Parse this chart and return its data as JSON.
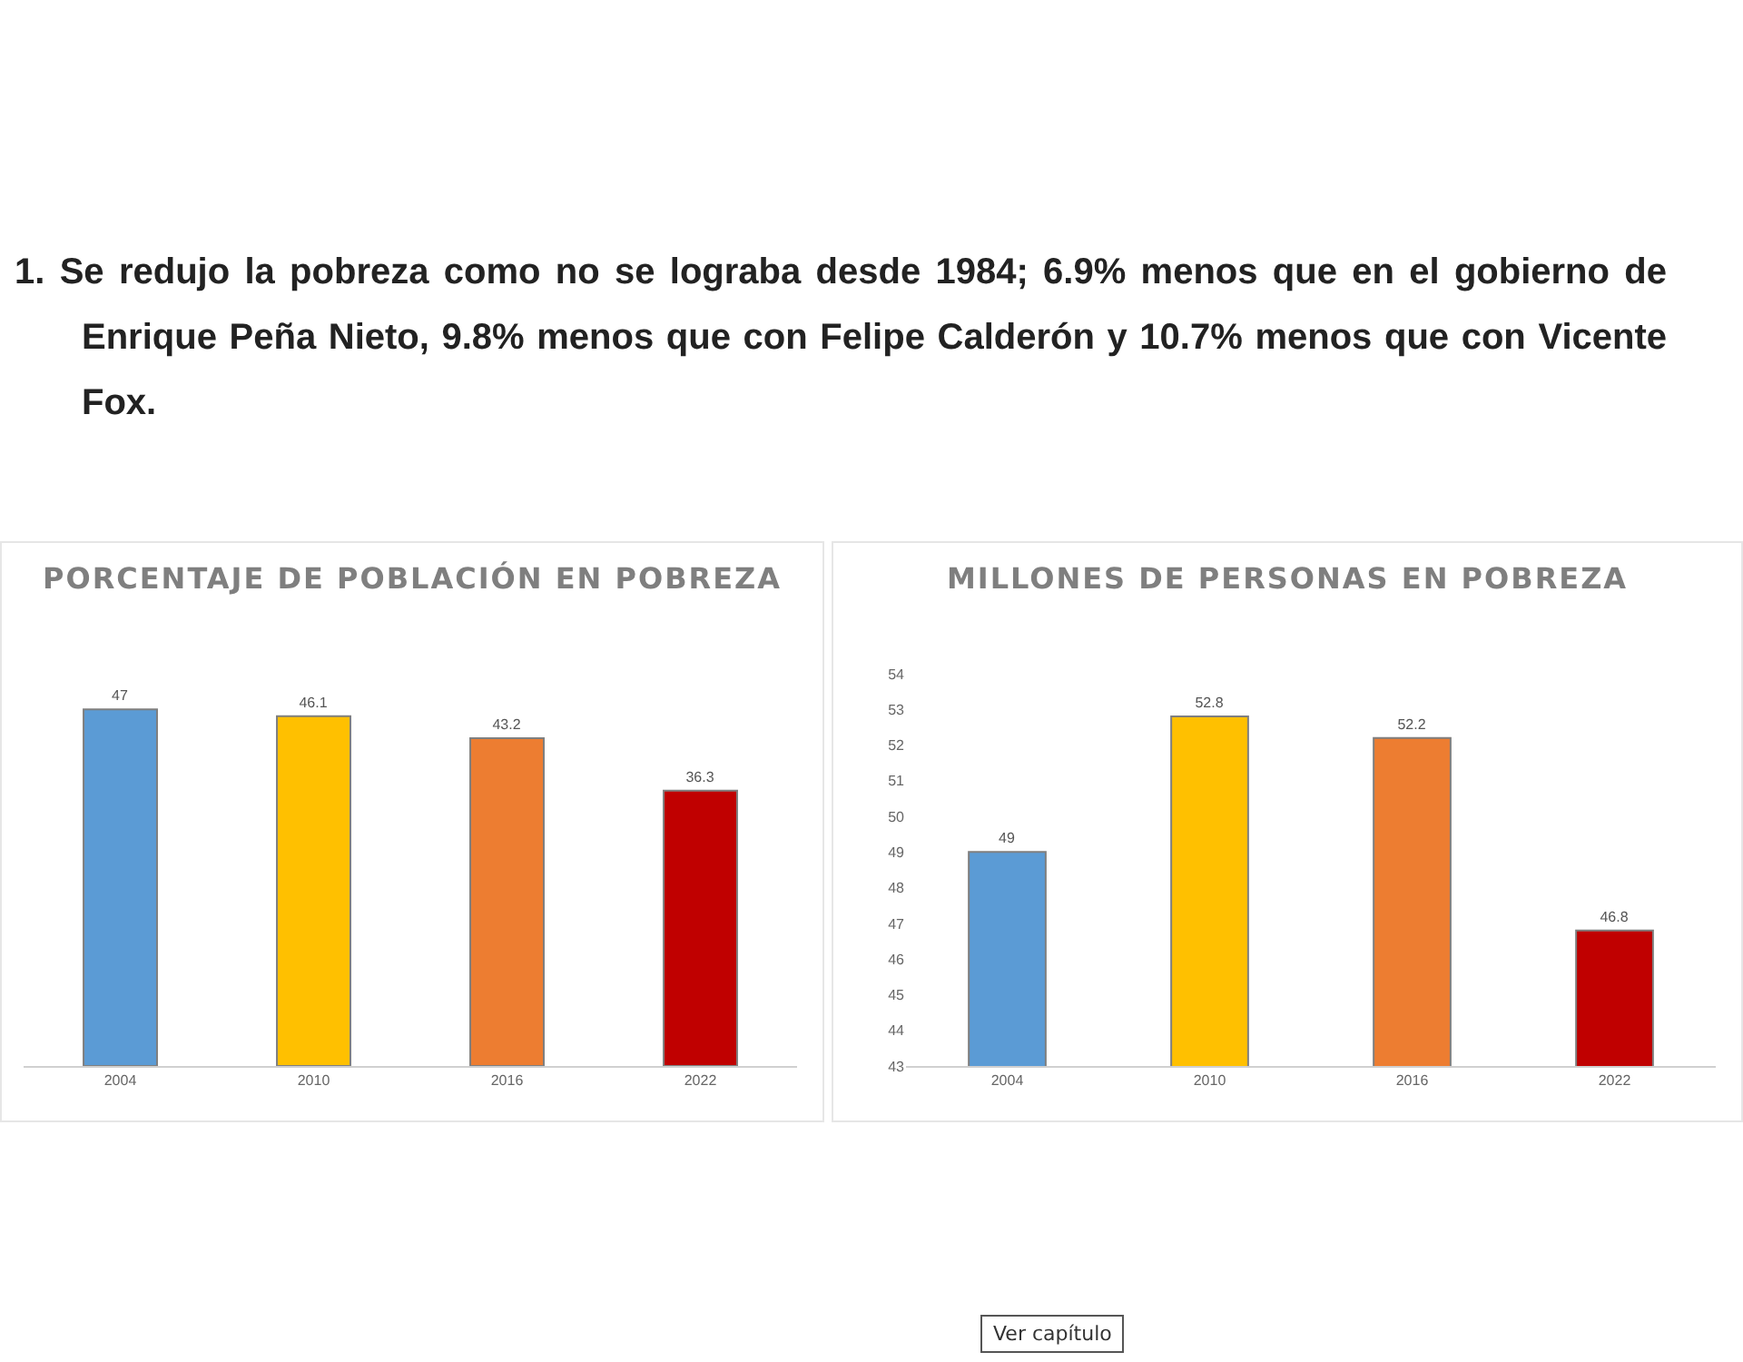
{
  "chart_data": [
    {
      "type": "other",
      "title": "1. Se redujo la pobreza como no se lograba desde 1984; 6.9% menos que en el gobierno de Enrique Peña Nieto, 9.8% menos que con Felipe Calderón y 10.7% menos que con Vicente Fox.",
      "annotations": [
        "Ver capítulo"
      ]
    },
    {
      "type": "bar",
      "title": "PORCENTAJE DE POBLACIÓN EN POBREZA",
      "categories": [
        "2004",
        "2010",
        "2016",
        "2022"
      ],
      "values": [
        47,
        46.1,
        43.2,
        36.3
      ],
      "colors": [
        "#5b9bd5",
        "#ffc000",
        "#ed7d31",
        "#c00000"
      ],
      "data_labels": true,
      "tick_labels": "x"
    },
    {
      "type": "bar",
      "title": "MILLONES DE PERSONAS EN POBREZA",
      "categories": [
        "2004",
        "2010",
        "2016",
        "2022"
      ],
      "values": [
        49,
        52.8,
        52.2,
        46.8
      ],
      "colors": [
        "#5b9bd5",
        "#ffc000",
        "#ed7d31",
        "#c00000"
      ],
      "data_labels": true,
      "ylim": [
        43,
        54
      ],
      "yticks": [
        43,
        44,
        45,
        46,
        47,
        48,
        49,
        50,
        51,
        52,
        53,
        54
      ]
    }
  ]
}
